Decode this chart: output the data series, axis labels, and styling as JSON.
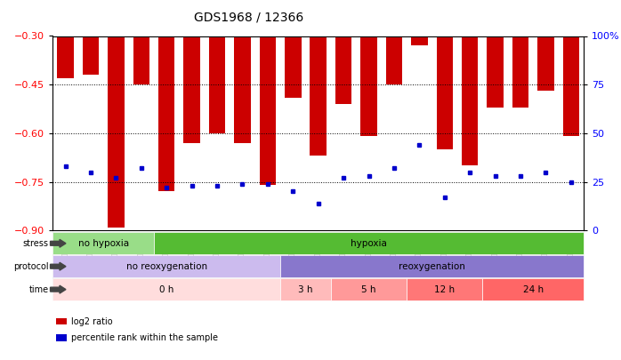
{
  "title": "GDS1968 / 12366",
  "samples": [
    "GSM16836",
    "GSM16837",
    "GSM16838",
    "GSM16839",
    "GSM16784",
    "GSM16814",
    "GSM16815",
    "GSM16816",
    "GSM16817",
    "GSM16818",
    "GSM16819",
    "GSM16821",
    "GSM16824",
    "GSM16826",
    "GSM16828",
    "GSM16830",
    "GSM16831",
    "GSM16832",
    "GSM16833",
    "GSM16834",
    "GSM16835"
  ],
  "log2_ratio": [
    -0.43,
    -0.42,
    -0.89,
    -0.45,
    -0.78,
    -0.63,
    -0.6,
    -0.63,
    -0.76,
    -0.49,
    -0.67,
    -0.51,
    -0.61,
    -0.45,
    -0.33,
    -0.65,
    -0.7,
    -0.52,
    -0.52,
    -0.47,
    -0.61
  ],
  "percentile": [
    33,
    30,
    27,
    32,
    22,
    23,
    23,
    24,
    24,
    20,
    14,
    27,
    28,
    32,
    44,
    17,
    30,
    28,
    28,
    30,
    25
  ],
  "bar_color": "#cc0000",
  "dot_color": "#0000cc",
  "ylim_left": [
    -0.9,
    -0.3
  ],
  "yticks_left": [
    -0.9,
    -0.75,
    -0.6,
    -0.45,
    -0.3
  ],
  "ylim_right": [
    0,
    100
  ],
  "yticks_right": [
    0,
    25,
    50,
    75,
    100
  ],
  "stress_groups": [
    {
      "label": "no hypoxia",
      "start": 0,
      "end": 4,
      "color": "#99dd88"
    },
    {
      "label": "hypoxia",
      "start": 4,
      "end": 21,
      "color": "#55bb33"
    }
  ],
  "protocol_groups": [
    {
      "label": "no reoxygenation",
      "start": 0,
      "end": 9,
      "color": "#ccbbee"
    },
    {
      "label": "reoxygenation",
      "start": 9,
      "end": 21,
      "color": "#8877cc"
    }
  ],
  "time_groups": [
    {
      "label": "0 h",
      "start": 0,
      "end": 9,
      "color": "#ffdddd"
    },
    {
      "label": "3 h",
      "start": 9,
      "end": 11,
      "color": "#ffbbbb"
    },
    {
      "label": "5 h",
      "start": 11,
      "end": 14,
      "color": "#ff9999"
    },
    {
      "label": "12 h",
      "start": 14,
      "end": 17,
      "color": "#ff7777"
    },
    {
      "label": "24 h",
      "start": 17,
      "end": 21,
      "color": "#ff6666"
    }
  ],
  "legend_items": [
    {
      "label": "log2 ratio",
      "color": "#cc0000"
    },
    {
      "label": "percentile rank within the sample",
      "color": "#0000cc"
    }
  ],
  "row_labels": [
    "stress",
    "protocol",
    "time"
  ],
  "title_fontsize": 10,
  "tick_fontsize": 6,
  "annotation_fontsize": 7.5,
  "legend_fontsize": 7
}
